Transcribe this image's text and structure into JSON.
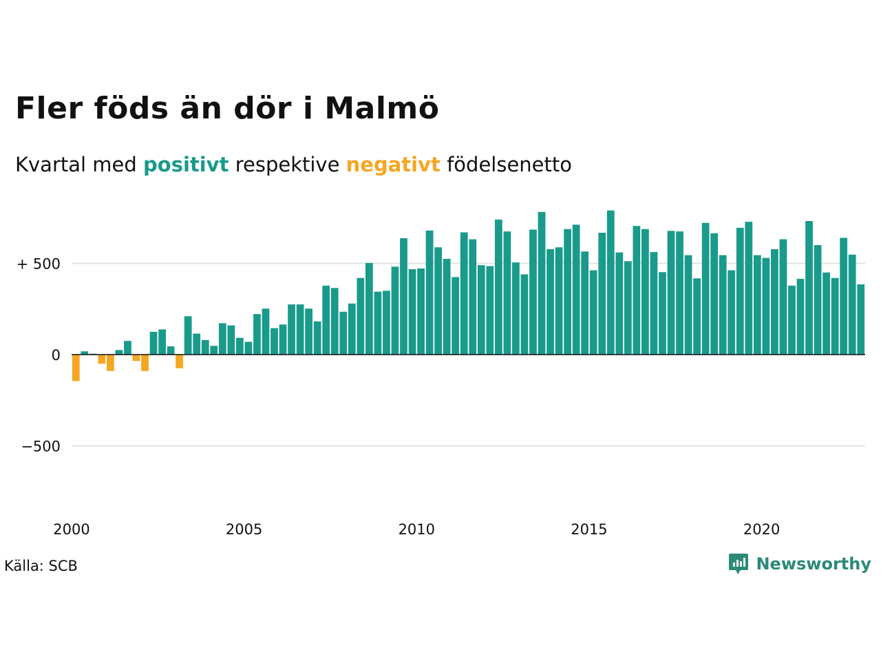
{
  "title": "Fler föds än dör i Malmö",
  "subtitle": {
    "prefix": "Kvartal med ",
    "positive_word": "positivt",
    "middle": " respektive ",
    "negative_word": "negativt",
    "suffix": " födelsenetto"
  },
  "source": "Källa: SCB",
  "brand": {
    "name": "Newsworthy",
    "icon": "newsworthy-logo-icon"
  },
  "colors": {
    "positive": "#1a9a8a",
    "negative": "#f5a623",
    "brand": "#2b8a78",
    "grid": "#e3e3e3",
    "axis": "#111111"
  },
  "chart_data": {
    "type": "bar",
    "x_start": "2000 Q1",
    "frequency": "quarterly",
    "y_ticks": [
      {
        "value": 500,
        "label": "+ 500"
      },
      {
        "value": 0,
        "label": "0"
      },
      {
        "value": -500,
        "label": "−500"
      }
    ],
    "x_ticks": [
      {
        "year": 2000,
        "label": "2000"
      },
      {
        "year": 2005,
        "label": "2005"
      },
      {
        "year": 2010,
        "label": "2010"
      },
      {
        "year": 2015,
        "label": "2015"
      },
      {
        "year": 2020,
        "label": "2020"
      }
    ],
    "ylim": [
      -800,
      850
    ],
    "grid": true,
    "values": [
      -145,
      18,
      5,
      -50,
      -90,
      25,
      75,
      -35,
      -90,
      125,
      138,
      45,
      -75,
      210,
      115,
      80,
      48,
      172,
      160,
      92,
      70,
      222,
      252,
      145,
      165,
      275,
      275,
      252,
      182,
      378,
      365,
      235,
      280,
      420,
      502,
      345,
      350,
      482,
      638,
      468,
      472,
      680,
      588,
      525,
      425,
      670,
      632,
      490,
      485,
      740,
      675,
      505,
      440,
      685,
      782,
      578,
      588,
      688,
      712,
      565,
      462,
      668,
      790,
      560,
      512,
      705,
      688,
      562,
      452,
      678,
      675,
      545,
      418,
      722,
      665,
      545,
      462,
      695,
      728,
      545,
      530,
      578,
      632,
      378,
      415,
      732,
      600,
      450,
      420,
      640,
      548,
      385
    ]
  }
}
